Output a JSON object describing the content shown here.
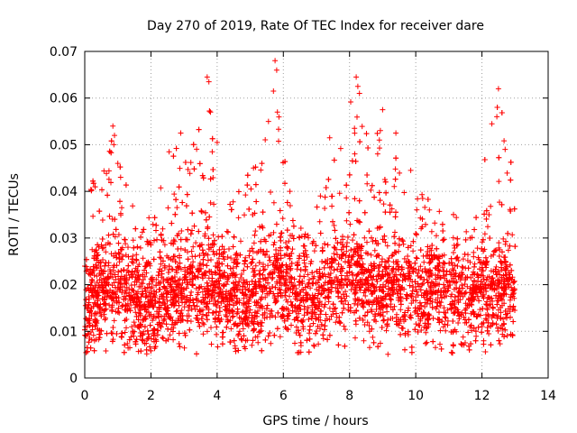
{
  "chart_data": {
    "type": "scatter",
    "title": "Day 270 of 2019, Rate Of TEC Index for receiver dare",
    "xlabel": "GPS time / hours",
    "ylabel": "ROTI / TECUs",
    "xlim": [
      0,
      14
    ],
    "ylim": [
      0,
      0.07
    ],
    "grid": true,
    "marker": "+",
    "color": "#ff0000",
    "x_ticks": [
      0,
      2,
      4,
      6,
      8,
      10,
      12,
      14
    ],
    "x_tick_labels": [
      "0",
      "2",
      "4",
      "6",
      "8",
      "10",
      "12",
      "14"
    ],
    "y_ticks": [
      0,
      0.01,
      0.02,
      0.03,
      0.04,
      0.05,
      0.06,
      0.07
    ],
    "y_tick_labels": [
      "0",
      "0.01",
      "0.02",
      "0.03",
      "0.04",
      "0.05",
      "0.06",
      "0.07"
    ],
    "x_range_hours": [
      0.0,
      13.0
    ],
    "series": [
      {
        "name": "ROTI",
        "profile": {
          "x": [
            0.0,
            0.5,
            0.9,
            1.3,
            1.7,
            2.2,
            2.7,
            3.2,
            3.8,
            4.3,
            4.8,
            5.4,
            5.8,
            6.3,
            6.8,
            7.2,
            7.7,
            8.2,
            8.7,
            9.2,
            9.7,
            10.2,
            10.7,
            11.2,
            11.6,
            12.0,
            12.5,
            13.0
          ],
          "y_typical": [
            0.016,
            0.018,
            0.02,
            0.017,
            0.015,
            0.016,
            0.018,
            0.019,
            0.02,
            0.017,
            0.017,
            0.019,
            0.022,
            0.018,
            0.016,
            0.018,
            0.02,
            0.021,
            0.02,
            0.019,
            0.019,
            0.018,
            0.018,
            0.017,
            0.016,
            0.018,
            0.019,
            0.018
          ],
          "y_max": [
            0.04,
            0.045,
            0.054,
            0.04,
            0.033,
            0.04,
            0.052,
            0.048,
            0.065,
            0.04,
            0.045,
            0.058,
            0.068,
            0.036,
            0.032,
            0.045,
            0.052,
            0.065,
            0.057,
            0.05,
            0.045,
            0.04,
            0.038,
            0.035,
            0.033,
            0.045,
            0.062,
            0.042
          ]
        },
        "highlights": [
          {
            "x": 0.85,
            "y": 0.054
          },
          {
            "x": 0.9,
            "y": 0.052
          },
          {
            "x": 0.88,
            "y": 0.05
          },
          {
            "x": 2.9,
            "y": 0.0525
          },
          {
            "x": 3.7,
            "y": 0.0645
          },
          {
            "x": 3.75,
            "y": 0.0635
          },
          {
            "x": 3.8,
            "y": 0.057
          },
          {
            "x": 3.85,
            "y": 0.0485
          },
          {
            "x": 5.1,
            "y": 0.045
          },
          {
            "x": 5.55,
            "y": 0.055
          },
          {
            "x": 5.75,
            "y": 0.068
          },
          {
            "x": 5.8,
            "y": 0.066
          },
          {
            "x": 5.7,
            "y": 0.0615
          },
          {
            "x": 5.82,
            "y": 0.057
          },
          {
            "x": 7.4,
            "y": 0.0515
          },
          {
            "x": 8.2,
            "y": 0.0645
          },
          {
            "x": 8.25,
            "y": 0.0625
          },
          {
            "x": 8.3,
            "y": 0.061
          },
          {
            "x": 8.15,
            "y": 0.0535
          },
          {
            "x": 9.0,
            "y": 0.0575
          },
          {
            "x": 8.9,
            "y": 0.051
          },
          {
            "x": 9.4,
            "y": 0.0525
          },
          {
            "x": 12.3,
            "y": 0.0545
          },
          {
            "x": 12.5,
            "y": 0.062
          },
          {
            "x": 12.45,
            "y": 0.056
          },
          {
            "x": 12.7,
            "y": 0.049
          },
          {
            "x": 9.85,
            "y": 0.0445
          },
          {
            "x": 1.0,
            "y": 0.046
          },
          {
            "x": 2.55,
            "y": 0.0485
          },
          {
            "x": 6.2,
            "y": 0.04
          }
        ]
      }
    ]
  }
}
